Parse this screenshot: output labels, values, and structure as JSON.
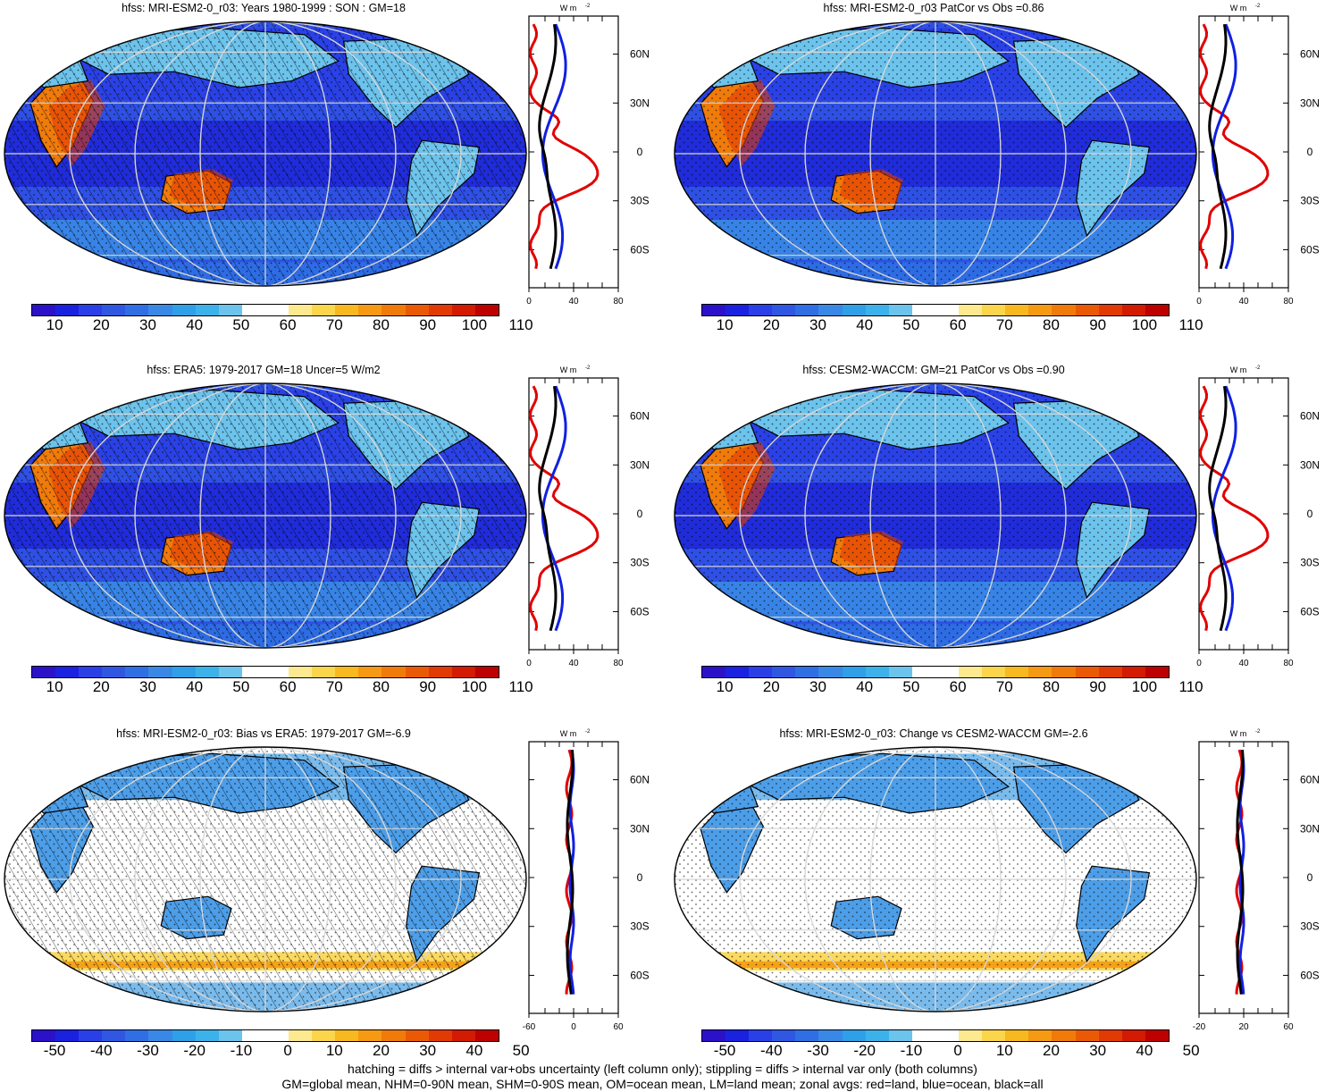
{
  "footer": {
    "line1": "hatching = diffs > internal var+obs uncertainty (left column only); stippling = diffs > internal var only (both columns)",
    "line2": "GM=global mean, NHM=0-90N mean, SHM=0-90S mean, OM=ocean mean, LM=land mean; zonal avgs: red=land, blue=ocean, black=all"
  },
  "profile_unit": "W m",
  "profile_unit_exp": "-2",
  "lat_ticks": [
    "60N",
    "30N",
    "0",
    "30S",
    "60S"
  ],
  "colorbar_abs": {
    "colors": [
      "#2b12c8",
      "#1a22e0",
      "#2a3fe6",
      "#2f57e2",
      "#2f6fe3",
      "#3a88e6",
      "#2fa0e8",
      "#3db2ea",
      "#6cc3ec",
      "#ffffff",
      "#ffffff",
      "#fde990",
      "#fbd54c",
      "#f8b820",
      "#f59a12",
      "#f07b0a",
      "#ea5a06",
      "#e23a04",
      "#d31a02",
      "#bd0000"
    ],
    "labels": [
      "10",
      "20",
      "30",
      "40",
      "50",
      "60",
      "70",
      "80",
      "90",
      "100",
      "110"
    ]
  },
  "colorbar_diff": {
    "colors": [
      "#2b12c8",
      "#1a22e0",
      "#2a3fe6",
      "#2f57e2",
      "#2f6fe3",
      "#3a88e6",
      "#2fa0e8",
      "#3db2ea",
      "#6cc3ec",
      "#ffffff",
      "#ffffff",
      "#fde990",
      "#fbd54c",
      "#f8b820",
      "#f59a12",
      "#f07b0a",
      "#ea5a06",
      "#e23a04",
      "#d31a02",
      "#bd0000"
    ],
    "labels": [
      "-50",
      "-40",
      "-30",
      "-20",
      "-10",
      "0",
      "10",
      "20",
      "30",
      "40",
      "50"
    ]
  },
  "panels": [
    {
      "id": "p1",
      "title": "hfss: MRI-ESM2-0_r03: Years 1980-1999 : SON : GM=18",
      "xticks": [
        "0",
        "40",
        "80"
      ],
      "kind": "abs",
      "hatch": true
    },
    {
      "id": "p2",
      "title": "hfss: MRI-ESM2-0_r03 PatCor vs Obs =0.86",
      "xticks": [
        "0",
        "40",
        "80"
      ],
      "kind": "abs",
      "hatch": false
    },
    {
      "id": "p3",
      "title": "hfss: ERA5: 1979-2017 GM=18 Uncer=5 W/m2",
      "xticks": [
        "0",
        "40",
        "80"
      ],
      "kind": "abs",
      "hatch": true
    },
    {
      "id": "p4",
      "title": "hfss: CESM2-WACCM: GM=21 PatCor vs Obs =0.90",
      "xticks": [
        "0",
        "40",
        "80"
      ],
      "kind": "abs",
      "hatch": false
    },
    {
      "id": "p5",
      "title": "hfss: MRI-ESM2-0_r03: Bias vs ERA5: 1979-2017  GM=-6.9",
      "xticks": [
        "-60",
        "0",
        "60"
      ],
      "kind": "diff",
      "hatch": true
    },
    {
      "id": "p6",
      "title": "hfss: MRI-ESM2-0_r03: Change vs CESM2-WACCM GM=-2.6",
      "xticks": [
        "-20",
        "20",
        "60"
      ],
      "kind": "diff",
      "hatch": false
    }
  ]
}
